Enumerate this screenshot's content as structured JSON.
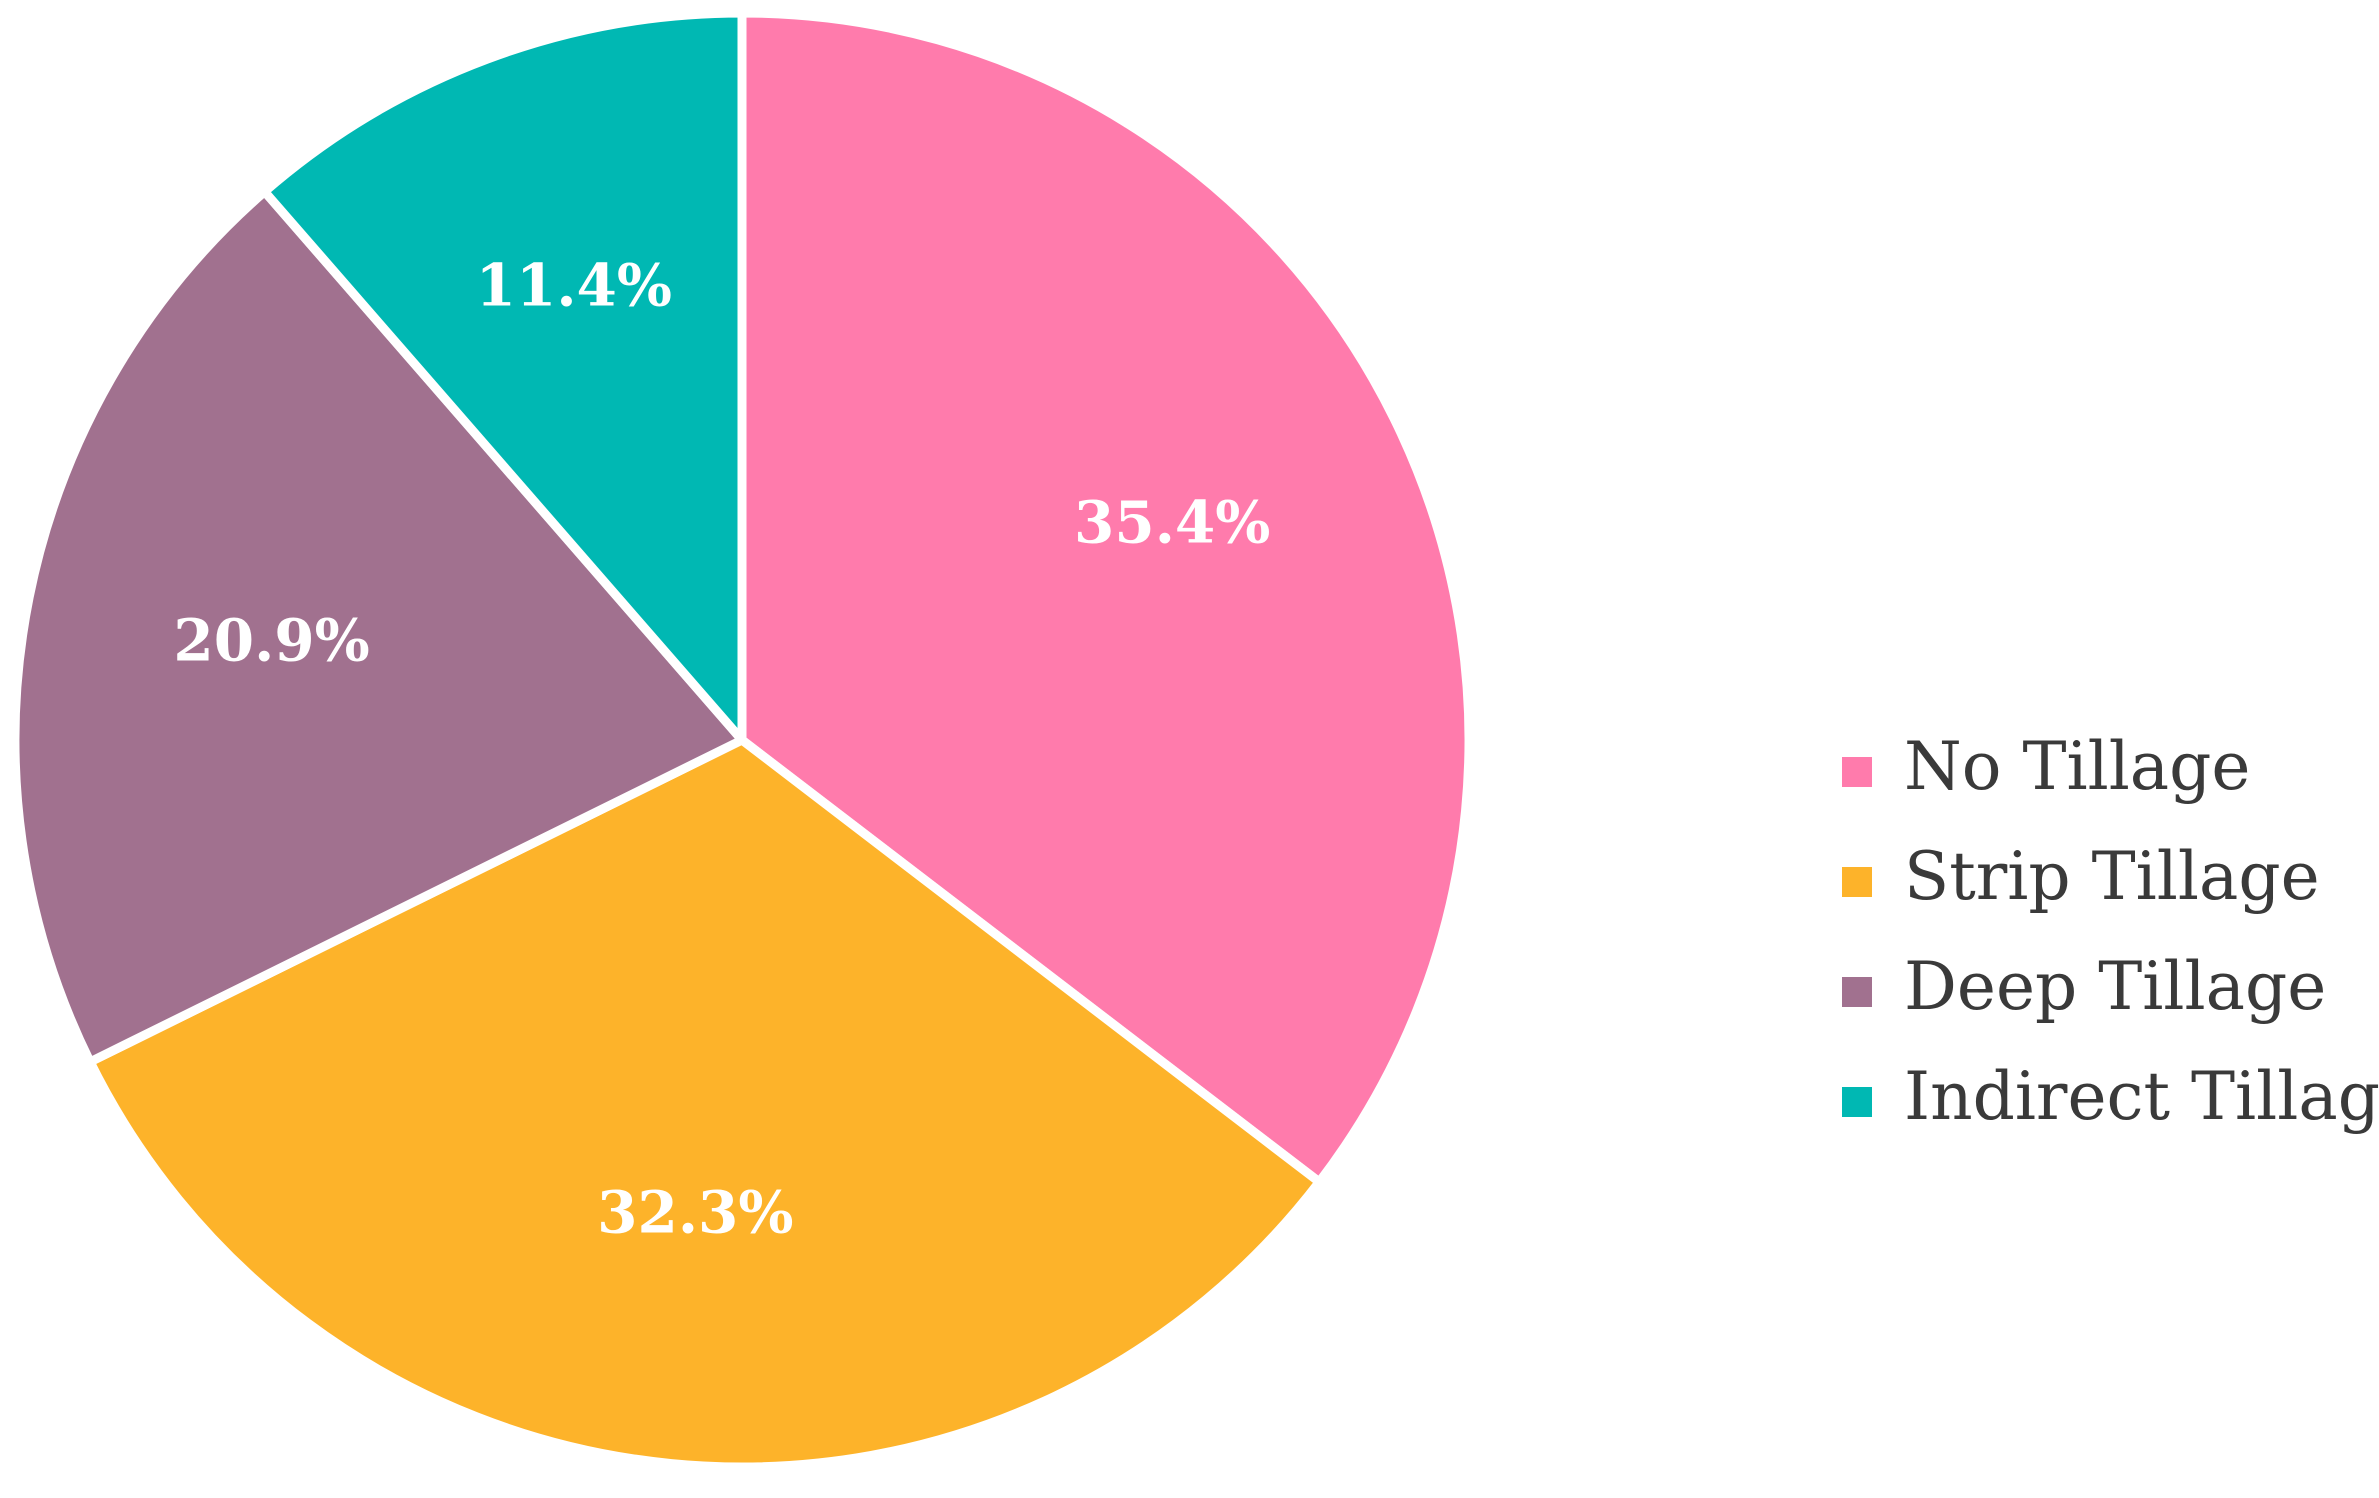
{
  "chart_data": {
    "type": "pie",
    "title": "",
    "categories": [
      "No Tillage",
      "Strip Tillage",
      "Deep Tillage",
      "Indirect Tillage"
    ],
    "values": [
      35.4,
      32.3,
      20.9,
      11.4
    ],
    "labels": [
      "35.4%",
      "32.3%",
      "20.9%",
      "11.4%"
    ],
    "colors": [
      "#FF7BAC",
      "#FDB32A",
      "#A1718F",
      "#00B8B3"
    ],
    "start_angle": "12 o'clock",
    "direction": "clockwise",
    "legend_position": "right",
    "slice_border_color": "#ffffff"
  }
}
